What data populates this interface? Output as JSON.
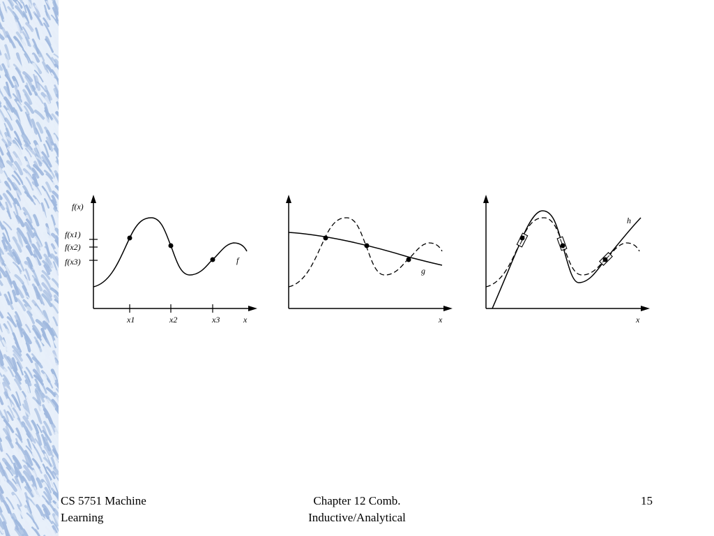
{
  "footer": {
    "course": "CS 5751 Machine\nLearning",
    "chapter": "Chapter 12  Comb.\nInductive/Analytical",
    "page_number": "15"
  },
  "panels": [
    {
      "y_axis_label": "f(x)",
      "y_tick_labels": [
        "f(x1)",
        "f(x2)",
        "f(x3)"
      ],
      "x_tick_labels": [
        "x1",
        "x2",
        "x3"
      ],
      "x_axis_label": "x",
      "curve_label": "f"
    },
    {
      "x_axis_label": "x",
      "curve_label": "g"
    },
    {
      "x_axis_label": "x",
      "curve_label": "h"
    }
  ],
  "colors": {
    "border_blue": "#9fb8de",
    "border_light": "#e6eef9",
    "ink": "#000000"
  }
}
